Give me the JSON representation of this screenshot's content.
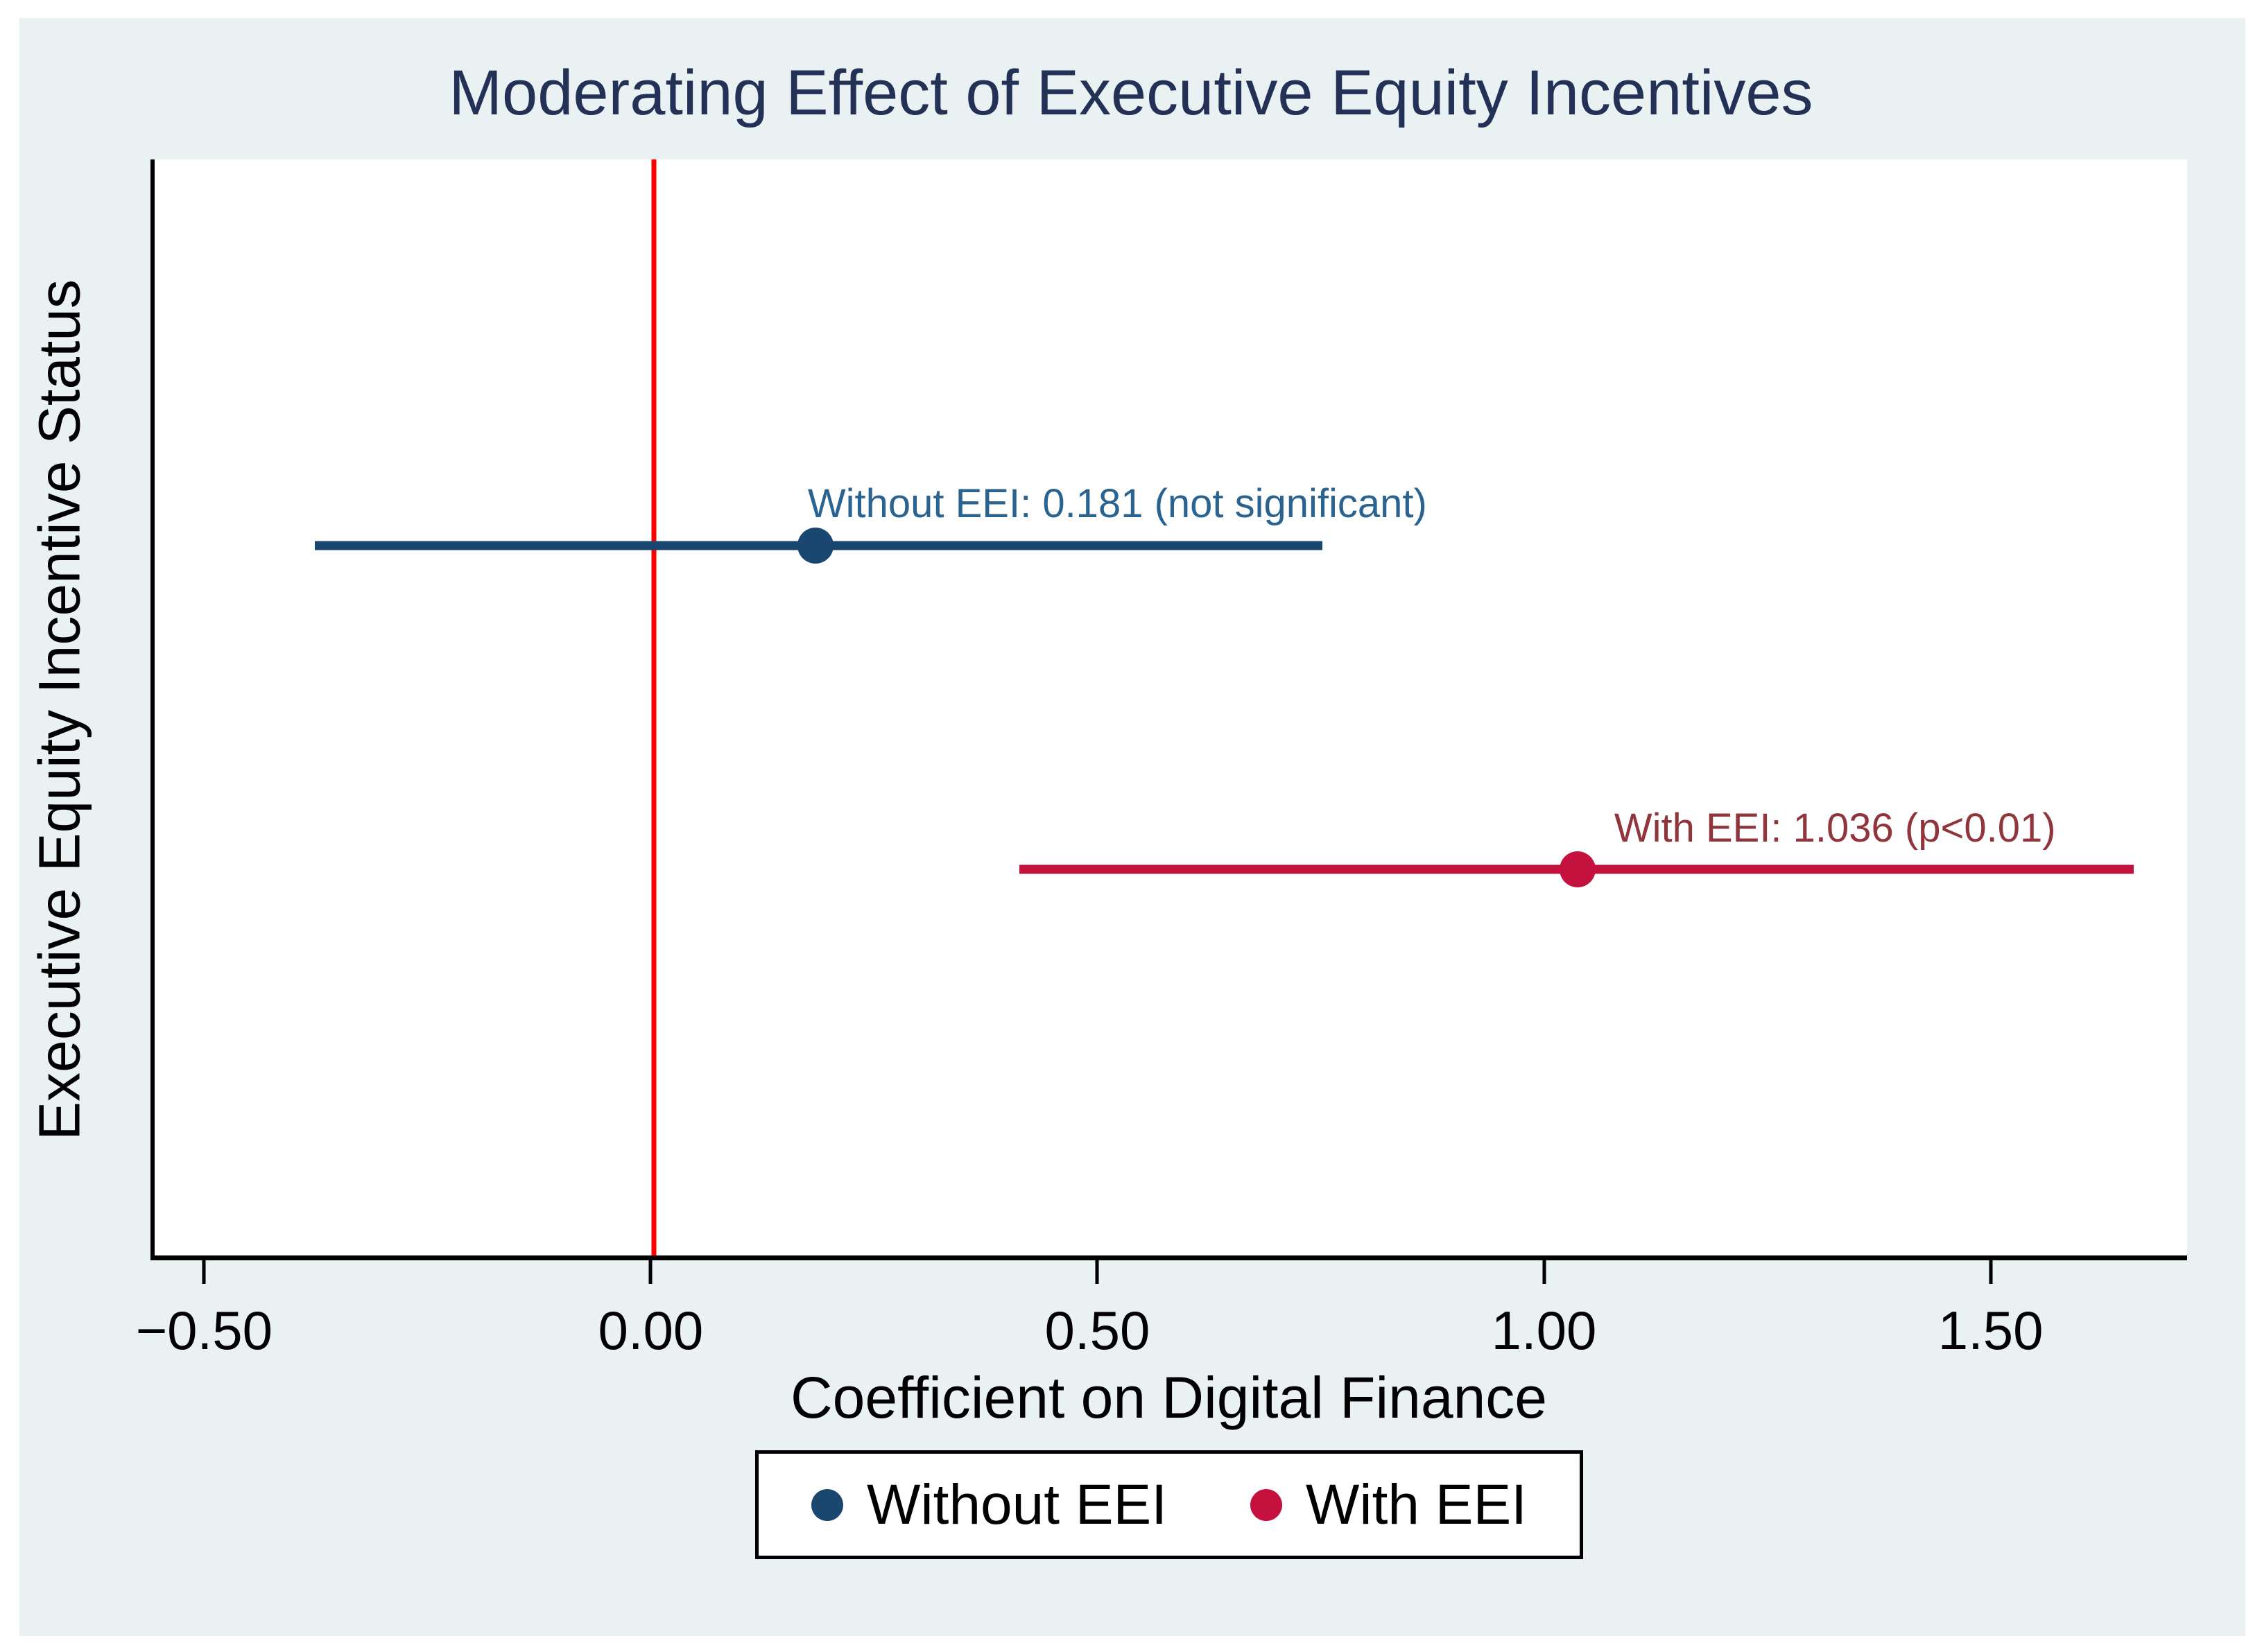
{
  "colors": {
    "panel_background": "#e9f1f3",
    "plot_background": "#ffffff",
    "axis": "#000000",
    "title": "#233156",
    "zero_line": "#fa0000",
    "navy": "#1a476f",
    "crimson": "#c4113d",
    "annotation_blue": "#2a6390",
    "annotation_maroon": "#90353b"
  },
  "chart_data": {
    "type": "scatter",
    "subtype": "coefficient-plot-with-ci",
    "title": "Moderating Effect of Executive Equity Incentives",
    "xlabel": "Coefficient on Digital Finance",
    "ylabel": "Executive Equity Incentive Status",
    "xlim": [
      -0.56,
      1.72
    ],
    "grid": false,
    "reference_line_x": 0,
    "x_ticks": [
      {
        "value": -0.5,
        "label": "−0.50"
      },
      {
        "value": 0.0,
        "label": "0.00"
      },
      {
        "value": 0.5,
        "label": "0.50"
      },
      {
        "value": 1.0,
        "label": "1.00"
      },
      {
        "value": 1.5,
        "label": "1.50"
      }
    ],
    "series": [
      {
        "id": "without-eei",
        "name": "Without EEI",
        "estimate": 0.181,
        "ci": [
          -0.38,
          0.75
        ],
        "annotation": "Without EEI: 0.181 (not significant)",
        "annotation_x": 0.52,
        "color": "#1a476f",
        "annotation_color": "#2a6390",
        "y_frac": 0.352
      },
      {
        "id": "with-eei",
        "name": "With EEI",
        "estimate": 1.036,
        "ci": [
          0.41,
          1.66
        ],
        "annotation": "With EEI: 1.036 (p<0.01)",
        "annotation_x": 1.325,
        "color": "#c4113d",
        "annotation_color": "#90353b",
        "y_frac": 0.648
      }
    ],
    "legend": {
      "position": "bottom",
      "items": [
        {
          "label": "Without EEI",
          "color": "#1a476f"
        },
        {
          "label": "With EEI",
          "color": "#c4113d"
        }
      ]
    }
  }
}
